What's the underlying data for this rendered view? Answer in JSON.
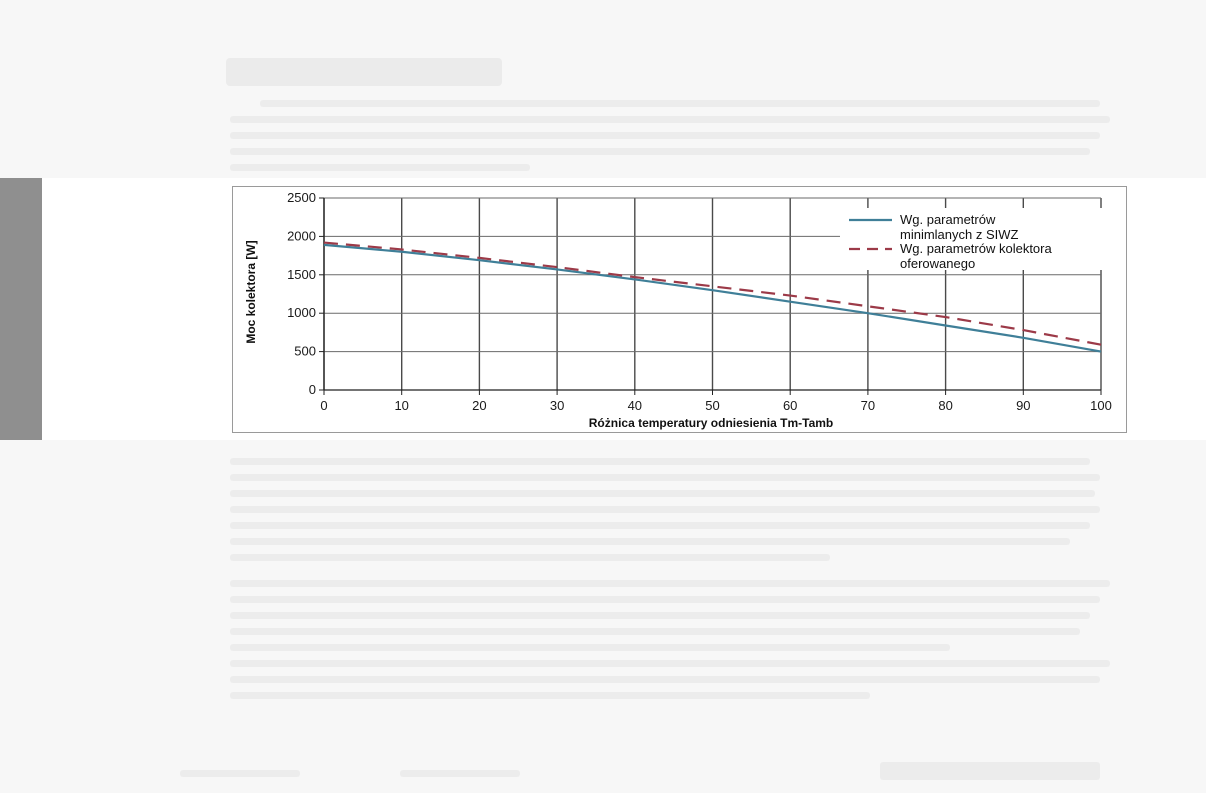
{
  "chart_data": {
    "type": "line",
    "title": "",
    "xlabel": "Różnica temperatury odniesienia Tm-Tamb",
    "ylabel": "Moc kolektora [W]",
    "xlim": [
      0,
      100
    ],
    "ylim": [
      0,
      2500
    ],
    "x_ticks": [
      "0",
      "10",
      "20",
      "30",
      "40",
      "50",
      "60",
      "70",
      "80",
      "90",
      "100"
    ],
    "y_ticks": [
      "0",
      "500",
      "1000",
      "1500",
      "2000",
      "2500"
    ],
    "grid": true,
    "legend_position": "top-right",
    "series": [
      {
        "name_line1": "Wg. parametrów",
        "name_line2": "minimlanych z SIWZ",
        "style": "solid",
        "color": "#3f7f98",
        "x": [
          0,
          10,
          20,
          30,
          40,
          50,
          60,
          70,
          80,
          90,
          100
        ],
        "y": [
          1890,
          1800,
          1690,
          1570,
          1440,
          1300,
          1150,
          1000,
          840,
          680,
          500
        ]
      },
      {
        "name_line1": "Wg. parametrów kolektora",
        "name_line2": "oferowanego",
        "style": "dashed",
        "color": "#9c3a48",
        "x": [
          0,
          10,
          20,
          30,
          40,
          50,
          60,
          70,
          80,
          90,
          100
        ],
        "y": [
          1920,
          1830,
          1720,
          1600,
          1470,
          1350,
          1230,
          1090,
          950,
          780,
          590
        ]
      }
    ]
  }
}
